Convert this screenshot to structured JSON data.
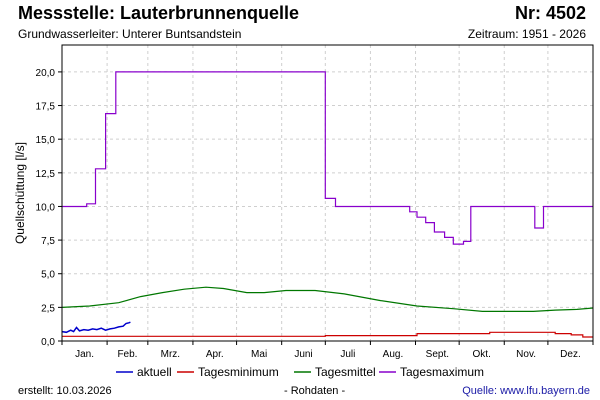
{
  "header": {
    "title": "Messstelle: Lauterbrunnenquelle",
    "nr": "Nr: 4502",
    "aquifer": "Grundwasserleiter:   Unterer Buntsandstein",
    "period": "Zeitraum: 1951 - 2026"
  },
  "footer": {
    "created": "erstellt:  10.03.2026",
    "raw": "- Rohdaten -",
    "source": "Quelle: www.lfu.bayern.de"
  },
  "colors": {
    "aktuell": "#0000cc",
    "min": "#cc0000",
    "mittel": "#007700",
    "max": "#8800cc"
  },
  "chart_data": {
    "type": "line",
    "ylabel": "Quellschüttung [l/s]",
    "xlabel": "",
    "ylim": [
      0,
      22
    ],
    "yticks": [
      "0,0",
      "2,5",
      "5,0",
      "7,5",
      "10,0",
      "12,5",
      "15,0",
      "17,5",
      "20,0"
    ],
    "ytick_values": [
      0,
      2.5,
      5,
      7.5,
      10,
      12.5,
      15,
      17.5,
      20
    ],
    "xlim": [
      1,
      366
    ],
    "month_labels": [
      "Jan.",
      "Feb.",
      "Mrz.",
      "Apr.",
      "Mai",
      "Juni",
      "Juli",
      "Aug.",
      "Sept.",
      "Okt.",
      "Nov.",
      "Dez."
    ],
    "grid": true,
    "legend_position": "bottom",
    "series": [
      {
        "name": "aktuell",
        "step": false,
        "points": [
          [
            1,
            0.7
          ],
          [
            4,
            0.65
          ],
          [
            7,
            0.8
          ],
          [
            9,
            0.7
          ],
          [
            11,
            1.0
          ],
          [
            13,
            0.75
          ],
          [
            16,
            0.85
          ],
          [
            19,
            0.8
          ],
          [
            22,
            0.9
          ],
          [
            25,
            0.85
          ],
          [
            28,
            0.95
          ],
          [
            31,
            0.8
          ],
          [
            34,
            0.9
          ],
          [
            37,
            0.95
          ],
          [
            40,
            1.05
          ],
          [
            43,
            1.1
          ],
          [
            45,
            1.3
          ],
          [
            47,
            1.35
          ],
          [
            48,
            1.4
          ]
        ]
      },
      {
        "name": "Tagesminimum",
        "step": true,
        "points": [
          [
            1,
            0.35
          ],
          [
            182,
            0.4
          ],
          [
            245,
            0.55
          ],
          [
            295,
            0.65
          ],
          [
            340,
            0.55
          ],
          [
            351,
            0.45
          ],
          [
            359,
            0.3
          ],
          [
            366,
            0.3
          ]
        ]
      },
      {
        "name": "Tagesmittel",
        "step": false,
        "points": [
          [
            1,
            2.5
          ],
          [
            20,
            2.6
          ],
          [
            40,
            2.85
          ],
          [
            55,
            3.3
          ],
          [
            70,
            3.6
          ],
          [
            85,
            3.85
          ],
          [
            100,
            4.0
          ],
          [
            112,
            3.9
          ],
          [
            128,
            3.6
          ],
          [
            140,
            3.6
          ],
          [
            155,
            3.75
          ],
          [
            175,
            3.75
          ],
          [
            195,
            3.5
          ],
          [
            220,
            3.0
          ],
          [
            245,
            2.6
          ],
          [
            270,
            2.4
          ],
          [
            290,
            2.2
          ],
          [
            310,
            2.2
          ],
          [
            325,
            2.2
          ],
          [
            340,
            2.3
          ],
          [
            355,
            2.35
          ],
          [
            366,
            2.45
          ]
        ]
      },
      {
        "name": "Tagesmaximum",
        "step": true,
        "points": [
          [
            1,
            10.0
          ],
          [
            18,
            10.2
          ],
          [
            24,
            12.8
          ],
          [
            31,
            16.9
          ],
          [
            38,
            20.0
          ],
          [
            182,
            10.6
          ],
          [
            189,
            10.0
          ],
          [
            240,
            9.6
          ],
          [
            245,
            9.2
          ],
          [
            251,
            8.8
          ],
          [
            257,
            8.1
          ],
          [
            264,
            7.7
          ],
          [
            270,
            7.2
          ],
          [
            277,
            7.4
          ],
          [
            282,
            10.0
          ],
          [
            326,
            8.4
          ],
          [
            332,
            10.0
          ],
          [
            366,
            10.0
          ]
        ]
      }
    ]
  }
}
